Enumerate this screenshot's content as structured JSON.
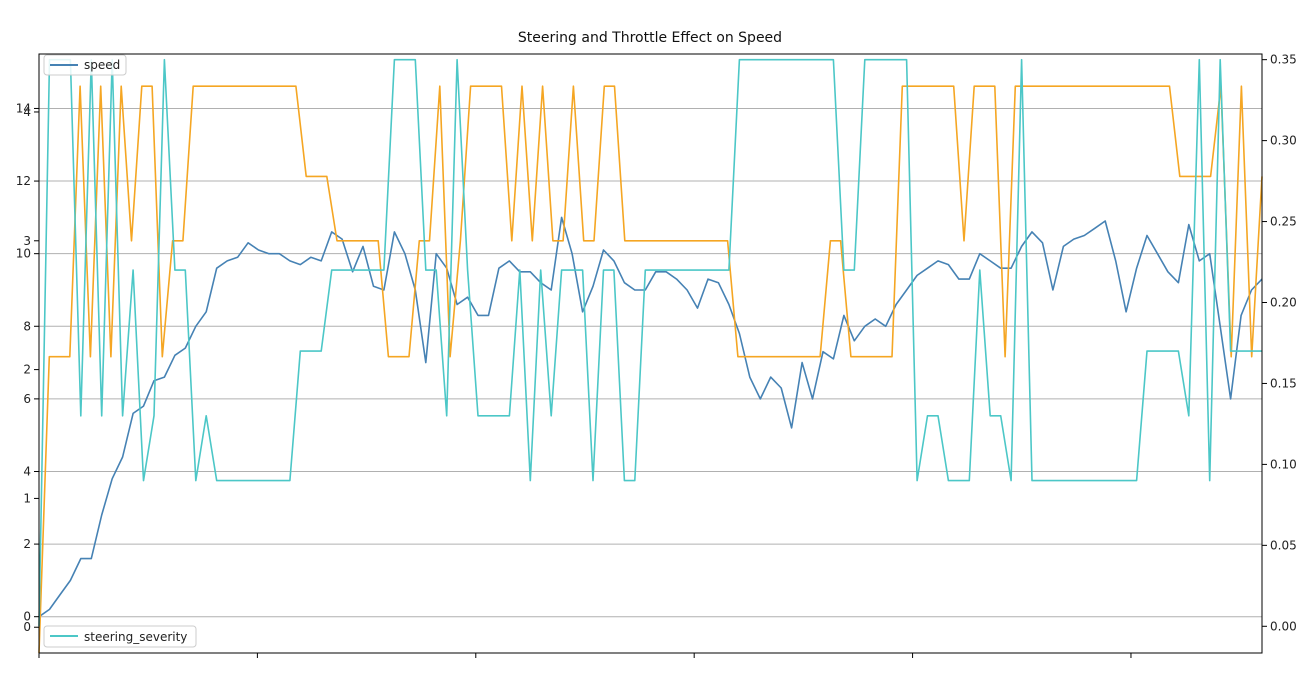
{
  "chart_data": {
    "type": "line",
    "title": "Steering and Throttle Effect on Speed",
    "grid": true,
    "x_tick_count": 6,
    "axes": {
      "speed_ylim": [
        -1.0,
        15.5
      ],
      "speed_ticks": [
        0,
        2,
        4,
        6,
        8,
        10,
        12,
        14
      ],
      "throttle_ylim": [
        -0.2,
        4.45
      ],
      "throttle_ticks": [
        0,
        1,
        2,
        3,
        4
      ],
      "steering_ylim": [
        -0.0165,
        0.3535
      ],
      "steering_ticks": [
        0.0,
        0.05,
        0.1,
        0.15,
        0.2,
        0.25,
        0.3,
        0.35
      ],
      "steering_tick_labels": [
        "0.00",
        "0.05",
        "0.10",
        "0.15",
        "0.20",
        "0.25",
        "0.30",
        "0.35"
      ]
    },
    "legends": [
      {
        "entries": [
          "speed"
        ],
        "placement": "top-left"
      },
      {
        "entries": [
          "steering_severity"
        ],
        "placement": "bottom-left"
      }
    ],
    "series": [
      {
        "name": "speed",
        "axis": "speed",
        "color": "#4682b4",
        "values": [
          0,
          0.2,
          0.6,
          1.0,
          1.6,
          1.6,
          2.8,
          3.8,
          4.4,
          5.6,
          5.8,
          6.5,
          6.6,
          7.2,
          7.4,
          8.0,
          8.4,
          9.6,
          9.8,
          9.9,
          10.3,
          10.1,
          10.0,
          10.0,
          9.8,
          9.7,
          9.9,
          9.8,
          10.6,
          10.4,
          9.5,
          10.2,
          9.1,
          9.0,
          10.6,
          10.0,
          9.0,
          7.0,
          10.0,
          9.6,
          8.6,
          8.8,
          8.3,
          8.3,
          9.6,
          9.8,
          9.5,
          9.5,
          9.2,
          9.0,
          11.0,
          10.0,
          8.4,
          9.1,
          10.1,
          9.8,
          9.2,
          9.0,
          9.0,
          9.5,
          9.5,
          9.3,
          9.0,
          8.5,
          9.3,
          9.2,
          8.6,
          7.8,
          6.6,
          6.0,
          6.6,
          6.3,
          5.2,
          7.0,
          6.0,
          7.3,
          7.1,
          8.3,
          7.6,
          8.0,
          8.2,
          8.0,
          8.6,
          9.0,
          9.4,
          9.6,
          9.8,
          9.7,
          9.3,
          9.3,
          10.0,
          9.8,
          9.6,
          9.6,
          10.2,
          10.6,
          10.3,
          9.0,
          10.2,
          10.4,
          10.5,
          10.7,
          10.9,
          9.8,
          8.4,
          9.6,
          10.5,
          10.0,
          9.5,
          9.2,
          10.8,
          9.8,
          10.0,
          8.0,
          6.0,
          8.3,
          9.0,
          9.3
        ]
      },
      {
        "name": "throttle",
        "axis": "throttle",
        "color": "#f5a623",
        "values": [
          -0.2,
          2.1,
          2.1,
          2.1,
          4.2,
          2.1,
          4.2,
          2.1,
          4.2,
          3.0,
          4.2,
          4.2,
          2.1,
          3.0,
          3.0,
          4.2,
          4.2,
          4.2,
          4.2,
          4.2,
          4.2,
          4.2,
          4.2,
          4.2,
          4.2,
          4.2,
          3.5,
          3.5,
          3.5,
          3.0,
          3.0,
          3.0,
          3.0,
          3.0,
          2.1,
          2.1,
          2.1,
          3.0,
          3.0,
          4.2,
          2.1,
          3.0,
          4.2,
          4.2,
          4.2,
          4.2,
          3.0,
          4.2,
          3.0,
          4.2,
          3.0,
          3.0,
          4.2,
          3.0,
          3.0,
          4.2,
          4.2,
          3.0,
          3.0,
          3.0,
          3.0,
          3.0,
          3.0,
          3.0,
          3.0,
          3.0,
          3.0,
          3.0,
          2.1,
          2.1,
          2.1,
          2.1,
          2.1,
          2.1,
          2.1,
          2.1,
          2.1,
          3.0,
          3.0,
          2.1,
          2.1,
          2.1,
          2.1,
          2.1,
          4.2,
          4.2,
          4.2,
          4.2,
          4.2,
          4.2,
          3.0,
          4.2,
          4.2,
          4.2,
          2.1,
          4.2,
          4.2,
          4.2,
          4.2,
          4.2,
          4.2,
          4.2,
          4.2,
          4.2,
          4.2,
          4.2,
          4.2,
          4.2,
          4.2,
          4.2,
          4.2,
          3.5,
          3.5,
          3.5,
          3.5,
          4.2,
          2.1,
          4.2,
          2.1,
          3.5
        ]
      },
      {
        "name": "steering_severity",
        "axis": "steering",
        "color": "#4cc7c7",
        "values": [
          0.0,
          0.35,
          0.35,
          0.35,
          0.13,
          0.35,
          0.13,
          0.35,
          0.13,
          0.22,
          0.09,
          0.13,
          0.35,
          0.22,
          0.22,
          0.09,
          0.13,
          0.09,
          0.09,
          0.09,
          0.09,
          0.09,
          0.09,
          0.09,
          0.09,
          0.17,
          0.17,
          0.17,
          0.22,
          0.22,
          0.22,
          0.22,
          0.22,
          0.22,
          0.35,
          0.35,
          0.35,
          0.22,
          0.22,
          0.13,
          0.35,
          0.22,
          0.13,
          0.13,
          0.13,
          0.13,
          0.22,
          0.09,
          0.22,
          0.13,
          0.22,
          0.22,
          0.22,
          0.09,
          0.22,
          0.22,
          0.09,
          0.09,
          0.22,
          0.22,
          0.22,
          0.22,
          0.22,
          0.22,
          0.22,
          0.22,
          0.22,
          0.35,
          0.35,
          0.35,
          0.35,
          0.35,
          0.35,
          0.35,
          0.35,
          0.35,
          0.35,
          0.22,
          0.22,
          0.35,
          0.35,
          0.35,
          0.35,
          0.35,
          0.09,
          0.13,
          0.13,
          0.09,
          0.09,
          0.09,
          0.22,
          0.13,
          0.13,
          0.09,
          0.35,
          0.09,
          0.09,
          0.09,
          0.09,
          0.09,
          0.09,
          0.09,
          0.09,
          0.09,
          0.09,
          0.09,
          0.17,
          0.17,
          0.17,
          0.17,
          0.13,
          0.35,
          0.09,
          0.35,
          0.17,
          0.17,
          0.17,
          0.17
        ]
      }
    ]
  }
}
